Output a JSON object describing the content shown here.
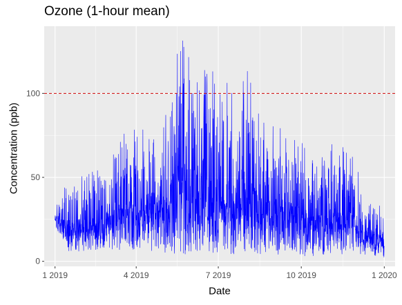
{
  "chart_data": {
    "type": "line",
    "title": "Ozone (1-hour mean)",
    "xlabel": "Date",
    "ylabel": "Concentration (ppb)",
    "x_range": [
      "2018-12-20",
      "2020-01-13"
    ],
    "ylim": [
      -3,
      140
    ],
    "x_ticks": [
      {
        "date": "2019-01-01",
        "label": "1 2019"
      },
      {
        "date": "2019-04-01",
        "label": "4 2019"
      },
      {
        "date": "2019-07-01",
        "label": "7 2019"
      },
      {
        "date": "2019-10-01",
        "label": "10 2019"
      },
      {
        "date": "2020-01-01",
        "label": "1 2020"
      }
    ],
    "y_ticks": [
      0,
      50,
      100
    ],
    "reference_line": {
      "y": 100,
      "color": "#cc0000",
      "style": "dashed"
    },
    "grid": true,
    "legend": "none",
    "series": [
      {
        "color": "#0000ff",
        "x": [
          "2019-01-01",
          "2019-01-15",
          "2019-02-01",
          "2019-02-15",
          "2019-03-01",
          "2019-03-15",
          "2019-04-01",
          "2019-04-15",
          "2019-05-01",
          "2019-05-15",
          "2019-06-01",
          "2019-06-15",
          "2019-07-01",
          "2019-07-15",
          "2019-08-01",
          "2019-08-15",
          "2019-09-01",
          "2019-09-15",
          "2019-10-01",
          "2019-10-15",
          "2019-11-01",
          "2019-11-15",
          "2019-12-01",
          "2019-12-15",
          "2020-01-01"
        ],
        "daily_min": [
          20,
          6,
          6,
          6,
          6,
          6,
          6,
          6,
          5,
          4,
          4,
          4,
          4,
          4,
          3,
          3,
          4,
          4,
          3,
          3,
          3,
          4,
          4,
          3,
          2
        ],
        "daily_max": [
          40,
          50,
          52,
          55,
          63,
          75,
          80,
          92,
          85,
          133,
          140,
          125,
          110,
          108,
          115,
          98,
          85,
          80,
          75,
          60,
          70,
          72,
          60,
          45,
          31
        ]
      }
    ]
  }
}
